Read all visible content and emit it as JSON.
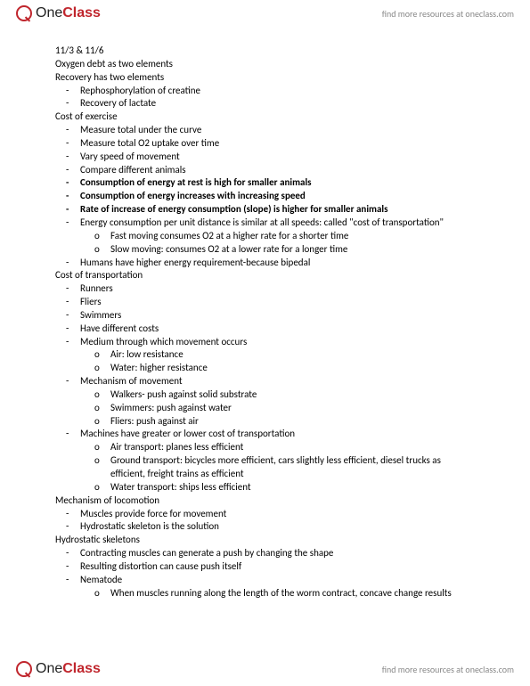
{
  "brand": {
    "one": "One",
    "class": "Class",
    "tagline": "find more resources at oneclass.com"
  },
  "doc": {
    "date_header": "11/3 & 11/6",
    "l1": "Oxygen debt as two elements",
    "l2": "Recovery has two elements",
    "recov": {
      "a": "Rephosphorylation of creatine",
      "b": "Recovery of lactate"
    },
    "l3": "Cost of exercise",
    "ex": {
      "a": "Measure total under the curve",
      "b": "Measure total O2 uptake over time",
      "c": "Vary speed of movement",
      "d": "Compare different animals",
      "e": "Consumption of energy at rest is high for smaller animals",
      "f": "Consumption of energy increases with increasing speed",
      "g": "Rate of increase of energy consumption (slope) is higher for smaller animals",
      "h": "Energy consumption per unit distance is similar at all speeds: called \"cost of transportation\"",
      "h1": "Fast moving consumes O2 at a higher rate for a shorter time",
      "h2": "Slow moving: consumes O2 at a lower rate for a longer time",
      "i": "Humans have higher energy requirement-because bipedal"
    },
    "l4": "Cost of transportation",
    "ct": {
      "a": "Runners",
      "b": "Fliers",
      "c": "Swimmers",
      "d": "Have different costs",
      "e": "Medium through which movement occurs",
      "e1": "Air: low resistance",
      "e2": "Water: higher resistance",
      "f": "Mechanism of movement",
      "f1": "Walkers- push against solid substrate",
      "f2": "Swimmers: push against water",
      "f3": "Fliers: push against air",
      "g": "Machines have greater or lower cost of transportation",
      "g1": "Air transport: planes less efficient",
      "g2": "Ground transport: bicycles more efficient, cars slightly less efficient, diesel trucks as efficient, freight trains as efficient",
      "g3": "Water transport: ships less efficient"
    },
    "l5": "Mechanism of locomotion",
    "ml": {
      "a": "Muscles provide force for movement",
      "b": "Hydrostatic skeleton is the solution"
    },
    "l6": "Hydrostatic skeletons",
    "hs": {
      "a": "Contracting muscles can generate a push by changing the shape",
      "b": "Resulting distortion can cause push itself",
      "c": "Nematode",
      "c1": "When muscles running along the length of the worm contract, concave change results"
    }
  }
}
